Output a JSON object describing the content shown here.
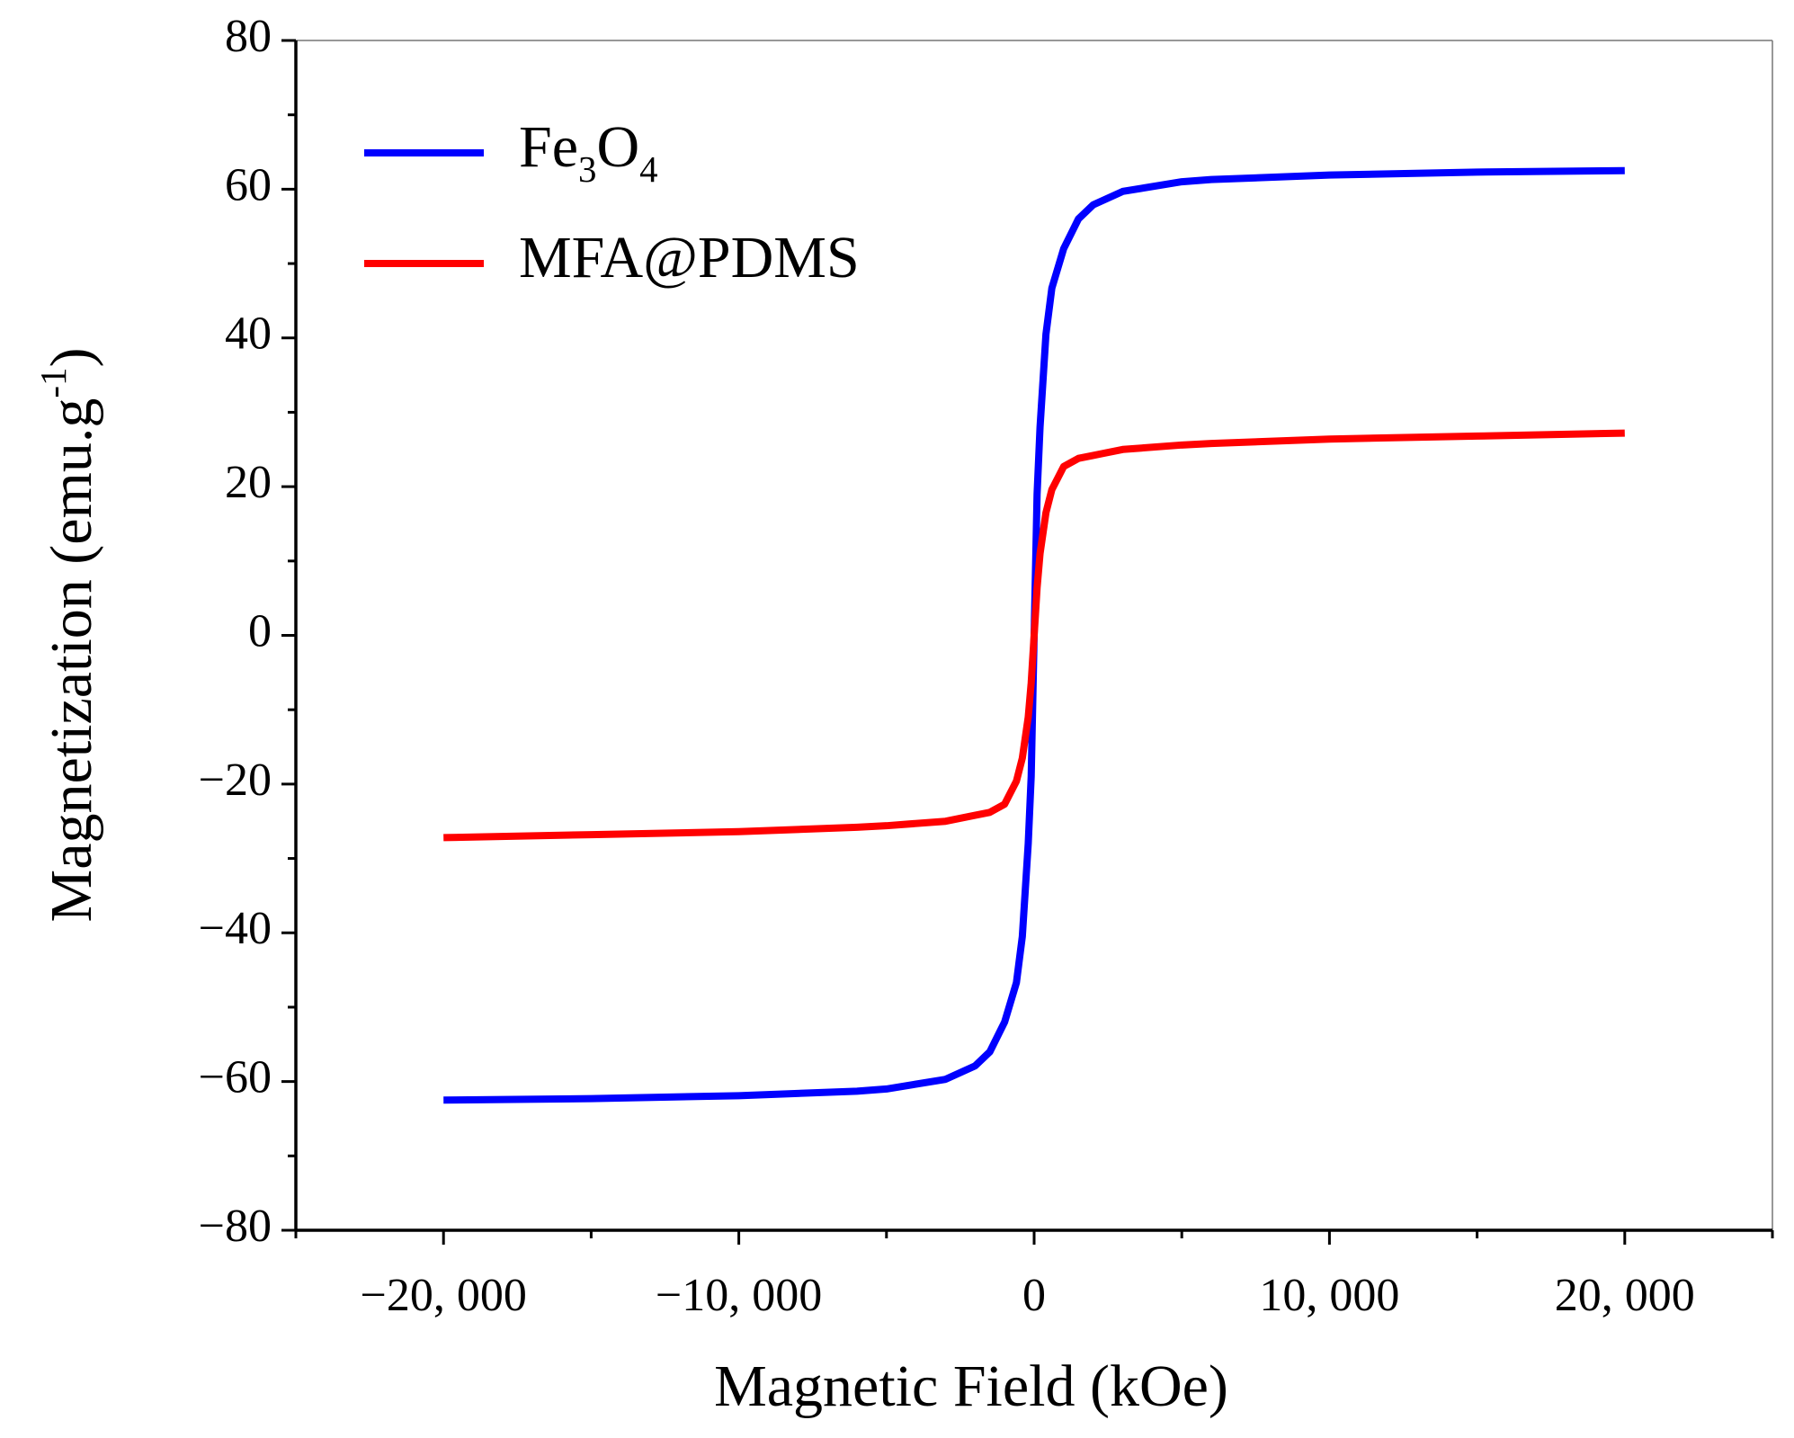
{
  "chart_data": {
    "type": "line",
    "x_label": "Magnetic Field (kOe)",
    "y_label": "Magnetization (emu.g-1)",
    "x": [
      -20000,
      -15000,
      -10000,
      -6000,
      -5000,
      -3000,
      -2000,
      -1500,
      -1000,
      -600,
      -400,
      -200,
      -100,
      0,
      100,
      200,
      400,
      600,
      1000,
      1500,
      2000,
      3000,
      5000,
      6000,
      10000,
      15000,
      20000
    ],
    "series": [
      {
        "name": "Fe3O4",
        "color": "#0000ff",
        "values": [
          -62.5,
          -62.3,
          -61.9,
          -61.3,
          -61.0,
          -59.7,
          -57.9,
          -56,
          -52,
          -46.7,
          -40.5,
          -28,
          -19,
          0,
          19,
          28,
          40.5,
          46.7,
          52,
          56,
          57.9,
          59.7,
          61.0,
          61.3,
          61.9,
          62.3,
          62.5
        ]
      },
      {
        "name": "MFA@PDMS",
        "color": "#ff0000",
        "values": [
          -27.2,
          -26.8,
          -26.4,
          -25.8,
          -25.6,
          -25.0,
          -24.2,
          -23.8,
          -22.7,
          -19.6,
          -16.5,
          -11,
          -6.4,
          0,
          6.4,
          11,
          16.5,
          19.6,
          22.7,
          23.8,
          24.2,
          25.0,
          25.6,
          25.8,
          26.4,
          26.8,
          27.2
        ]
      }
    ],
    "xlim": [
      -25000,
      25000
    ],
    "xticks": [
      {
        "value": -20000,
        "label": "−20, 000"
      },
      {
        "value": -10000,
        "label": "−10, 000"
      },
      0,
      {
        "value": 10000,
        "label": "10, 000"
      },
      {
        "value": 20000,
        "label": "20, 000"
      }
    ],
    "xminorticks": [
      -25000,
      -15000,
      -5000,
      5000,
      15000,
      25000
    ],
    "ylim": [
      -80,
      80
    ],
    "yticks": [
      {
        "value": -80,
        "label": "−80"
      },
      {
        "value": -60,
        "label": "−60"
      },
      {
        "value": -40,
        "label": "−40"
      },
      {
        "value": -20,
        "label": "−20"
      },
      0,
      20,
      40,
      60,
      80
    ],
    "yminorticks": [
      -70,
      -50,
      -30,
      -10,
      10,
      30,
      50,
      70
    ],
    "legend": "upper left"
  }
}
